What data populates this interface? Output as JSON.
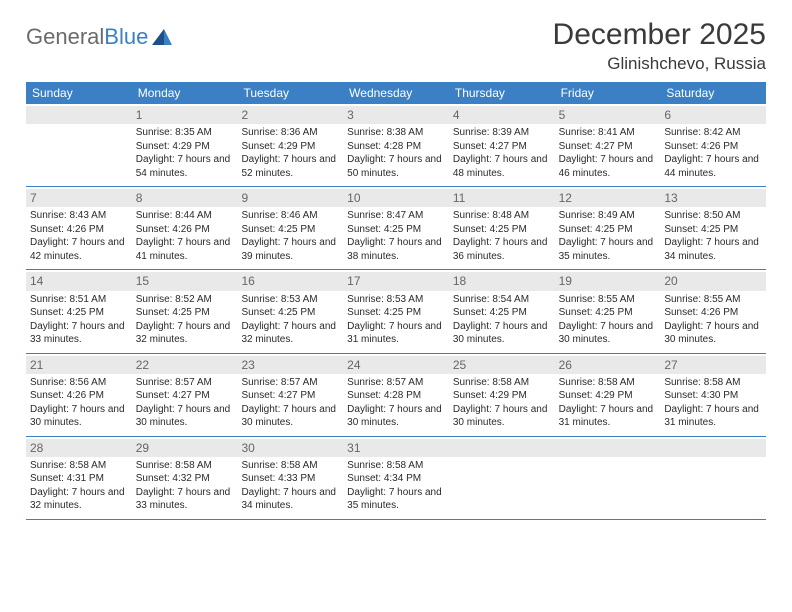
{
  "brand": {
    "name_a": "General",
    "name_b": "Blue"
  },
  "title": "December 2025",
  "location": "Glinishchevo, Russia",
  "colors": {
    "header_bg": "#3b7fc4",
    "header_text": "#ffffff",
    "daynum_bg": "#e9e9e9",
    "daynum_text": "#666666",
    "body_text": "#2a2a2a",
    "rule": "#3b7fc4"
  },
  "weekdays": [
    "Sunday",
    "Monday",
    "Tuesday",
    "Wednesday",
    "Thursday",
    "Friday",
    "Saturday"
  ],
  "weeks": [
    [
      {
        "n": "",
        "sunrise": "",
        "sunset": "",
        "daylight": ""
      },
      {
        "n": "1",
        "sunrise": "8:35 AM",
        "sunset": "4:29 PM",
        "daylight": "7 hours and 54 minutes."
      },
      {
        "n": "2",
        "sunrise": "8:36 AM",
        "sunset": "4:29 PM",
        "daylight": "7 hours and 52 minutes."
      },
      {
        "n": "3",
        "sunrise": "8:38 AM",
        "sunset": "4:28 PM",
        "daylight": "7 hours and 50 minutes."
      },
      {
        "n": "4",
        "sunrise": "8:39 AM",
        "sunset": "4:27 PM",
        "daylight": "7 hours and 48 minutes."
      },
      {
        "n": "5",
        "sunrise": "8:41 AM",
        "sunset": "4:27 PM",
        "daylight": "7 hours and 46 minutes."
      },
      {
        "n": "6",
        "sunrise": "8:42 AM",
        "sunset": "4:26 PM",
        "daylight": "7 hours and 44 minutes."
      }
    ],
    [
      {
        "n": "7",
        "sunrise": "8:43 AM",
        "sunset": "4:26 PM",
        "daylight": "7 hours and 42 minutes."
      },
      {
        "n": "8",
        "sunrise": "8:44 AM",
        "sunset": "4:26 PM",
        "daylight": "7 hours and 41 minutes."
      },
      {
        "n": "9",
        "sunrise": "8:46 AM",
        "sunset": "4:25 PM",
        "daylight": "7 hours and 39 minutes."
      },
      {
        "n": "10",
        "sunrise": "8:47 AM",
        "sunset": "4:25 PM",
        "daylight": "7 hours and 38 minutes."
      },
      {
        "n": "11",
        "sunrise": "8:48 AM",
        "sunset": "4:25 PM",
        "daylight": "7 hours and 36 minutes."
      },
      {
        "n": "12",
        "sunrise": "8:49 AM",
        "sunset": "4:25 PM",
        "daylight": "7 hours and 35 minutes."
      },
      {
        "n": "13",
        "sunrise": "8:50 AM",
        "sunset": "4:25 PM",
        "daylight": "7 hours and 34 minutes."
      }
    ],
    [
      {
        "n": "14",
        "sunrise": "8:51 AM",
        "sunset": "4:25 PM",
        "daylight": "7 hours and 33 minutes."
      },
      {
        "n": "15",
        "sunrise": "8:52 AM",
        "sunset": "4:25 PM",
        "daylight": "7 hours and 32 minutes."
      },
      {
        "n": "16",
        "sunrise": "8:53 AM",
        "sunset": "4:25 PM",
        "daylight": "7 hours and 32 minutes."
      },
      {
        "n": "17",
        "sunrise": "8:53 AM",
        "sunset": "4:25 PM",
        "daylight": "7 hours and 31 minutes."
      },
      {
        "n": "18",
        "sunrise": "8:54 AM",
        "sunset": "4:25 PM",
        "daylight": "7 hours and 30 minutes."
      },
      {
        "n": "19",
        "sunrise": "8:55 AM",
        "sunset": "4:25 PM",
        "daylight": "7 hours and 30 minutes."
      },
      {
        "n": "20",
        "sunrise": "8:55 AM",
        "sunset": "4:26 PM",
        "daylight": "7 hours and 30 minutes."
      }
    ],
    [
      {
        "n": "21",
        "sunrise": "8:56 AM",
        "sunset": "4:26 PM",
        "daylight": "7 hours and 30 minutes."
      },
      {
        "n": "22",
        "sunrise": "8:57 AM",
        "sunset": "4:27 PM",
        "daylight": "7 hours and 30 minutes."
      },
      {
        "n": "23",
        "sunrise": "8:57 AM",
        "sunset": "4:27 PM",
        "daylight": "7 hours and 30 minutes."
      },
      {
        "n": "24",
        "sunrise": "8:57 AM",
        "sunset": "4:28 PM",
        "daylight": "7 hours and 30 minutes."
      },
      {
        "n": "25",
        "sunrise": "8:58 AM",
        "sunset": "4:29 PM",
        "daylight": "7 hours and 30 minutes."
      },
      {
        "n": "26",
        "sunrise": "8:58 AM",
        "sunset": "4:29 PM",
        "daylight": "7 hours and 31 minutes."
      },
      {
        "n": "27",
        "sunrise": "8:58 AM",
        "sunset": "4:30 PM",
        "daylight": "7 hours and 31 minutes."
      }
    ],
    [
      {
        "n": "28",
        "sunrise": "8:58 AM",
        "sunset": "4:31 PM",
        "daylight": "7 hours and 32 minutes."
      },
      {
        "n": "29",
        "sunrise": "8:58 AM",
        "sunset": "4:32 PM",
        "daylight": "7 hours and 33 minutes."
      },
      {
        "n": "30",
        "sunrise": "8:58 AM",
        "sunset": "4:33 PM",
        "daylight": "7 hours and 34 minutes."
      },
      {
        "n": "31",
        "sunrise": "8:58 AM",
        "sunset": "4:34 PM",
        "daylight": "7 hours and 35 minutes."
      },
      {
        "n": "",
        "sunrise": "",
        "sunset": "",
        "daylight": ""
      },
      {
        "n": "",
        "sunrise": "",
        "sunset": "",
        "daylight": ""
      },
      {
        "n": "",
        "sunrise": "",
        "sunset": "",
        "daylight": ""
      }
    ]
  ],
  "labels": {
    "sunrise": "Sunrise:",
    "sunset": "Sunset:",
    "daylight": "Daylight:"
  }
}
